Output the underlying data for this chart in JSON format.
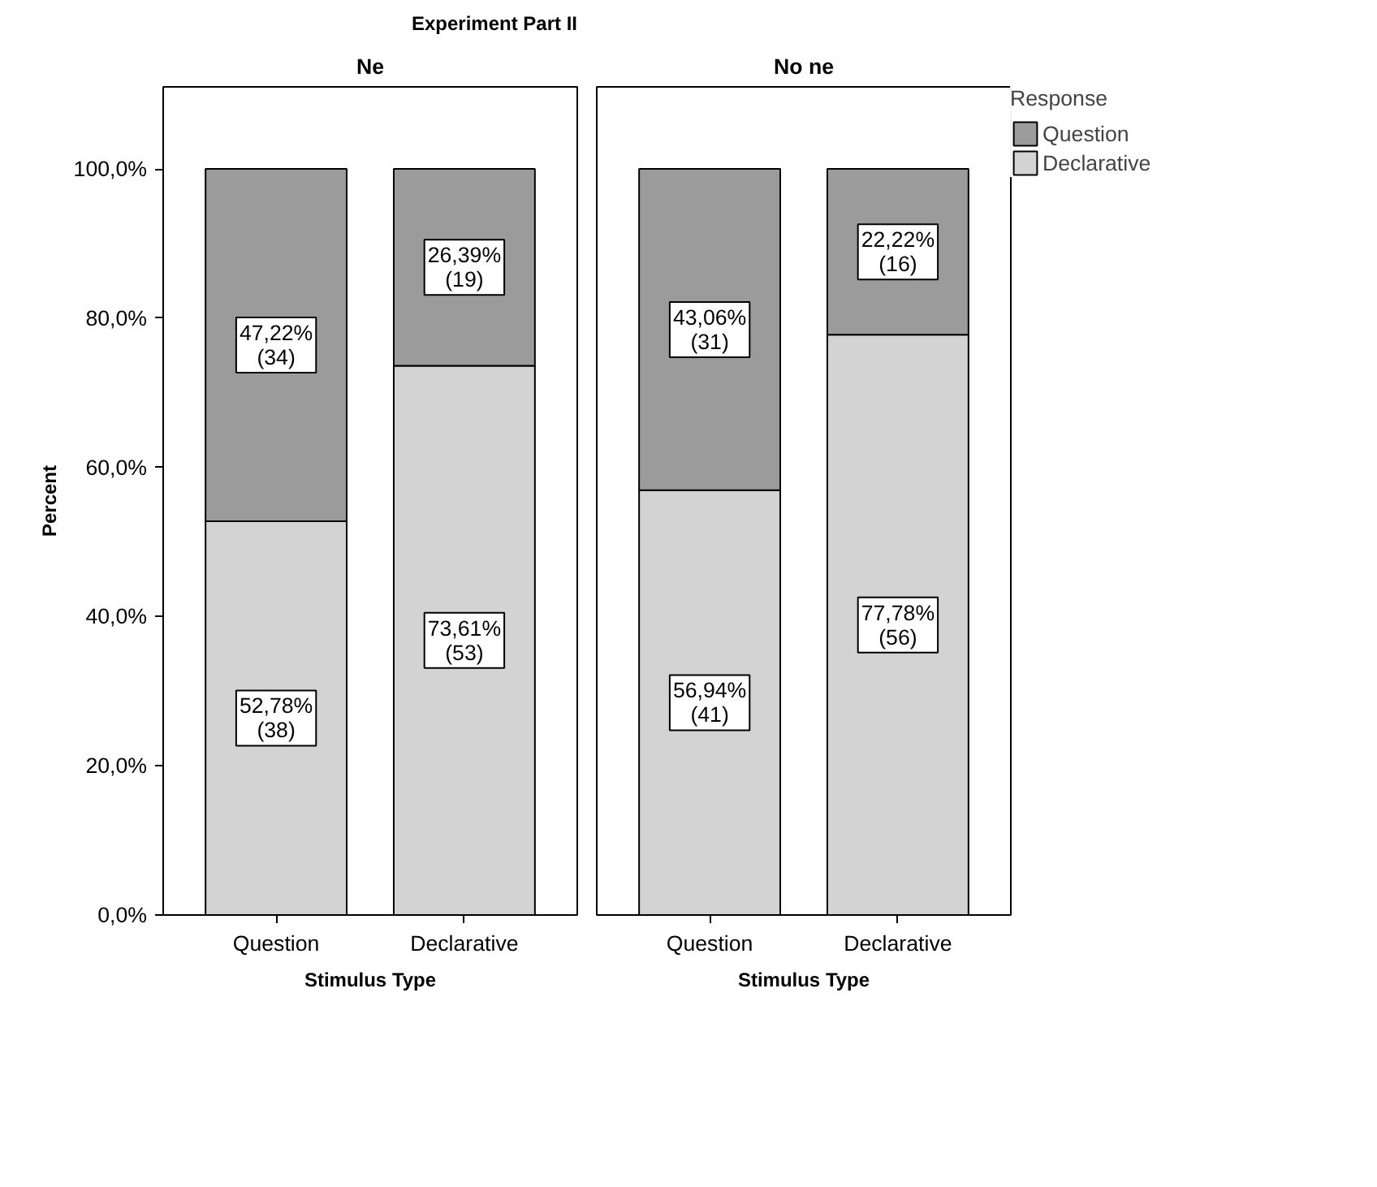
{
  "chart_data": [
    {
      "type": "bar",
      "stacked": true,
      "title": "Experiment Part II",
      "subtitle": "Ne",
      "xlabel": "Stimulus Type",
      "ylabel": "Percent",
      "categories": [
        "Question",
        "Declarative"
      ],
      "ylim": [
        0,
        111
      ],
      "yticks": [
        {
          "value": 0,
          "label": "0,0%"
        },
        {
          "value": 20,
          "label": "20,0%"
        },
        {
          "value": 40,
          "label": "40,0%"
        },
        {
          "value": 60,
          "label": "60,0%"
        },
        {
          "value": 80,
          "label": "80,0%"
        },
        {
          "value": 100,
          "label": "100,0%"
        }
      ],
      "grid": false,
      "legend": false,
      "series": [
        {
          "color": "#d3d3d3",
          "values": [
            52.78,
            73.61
          ],
          "value_labels": [
            "52,78%\n(38)",
            "73,61%\n(53)"
          ]
        },
        {
          "color": "#9b9b9b",
          "values": [
            47.22,
            26.39
          ],
          "value_labels": [
            "47,22%\n(34)",
            "26,39%\n(19)"
          ]
        }
      ]
    },
    {
      "type": "bar",
      "stacked": true,
      "subtitle": "No ne",
      "xlabel": "Stimulus Type",
      "categories": [
        "Question",
        "Declarative"
      ],
      "ylim": [
        0,
        111
      ],
      "tick_labels": "x",
      "grid": false,
      "legend": "top right",
      "legend_title": "Response",
      "series": [
        {
          "name": "Declarative",
          "color": "#d3d3d3",
          "values": [
            56.94,
            77.78
          ],
          "value_labels": [
            "56,94%\n(41)",
            "77,78%\n(56)"
          ]
        },
        {
          "name": "Question",
          "color": "#9b9b9b",
          "values": [
            43.06,
            22.22
          ],
          "value_labels": [
            "43,06%\n(31)",
            "22,22%\n(16)"
          ]
        }
      ]
    }
  ]
}
